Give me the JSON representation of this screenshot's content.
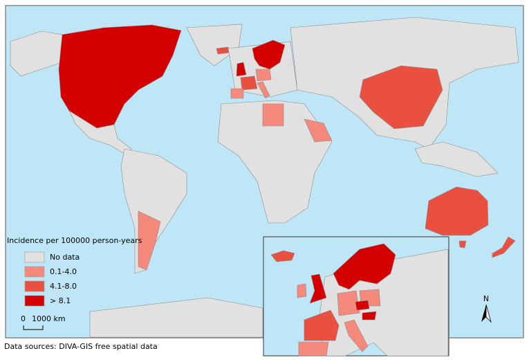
{
  "map": {
    "legend": {
      "title": "Incidence per 100000 person-years",
      "items": [
        {
          "label": "No data",
          "color": "#e1e1e1"
        },
        {
          "label": "0.1-4.0",
          "color": "#f58a7c"
        },
        {
          "label": "4.1-8.0",
          "color": "#e9503f"
        },
        {
          "label": "> 8.1",
          "color": "#d40000"
        }
      ]
    },
    "scale_bar": {
      "zero": "0",
      "label": "1000 km"
    },
    "north_arrow": "N"
  },
  "source": "Data sources: DIVA-GIS free spatial data"
}
